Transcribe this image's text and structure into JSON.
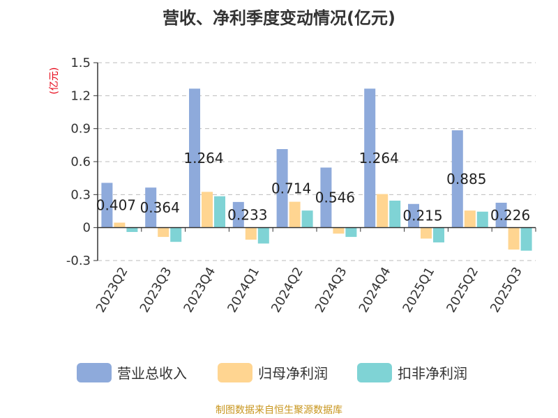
{
  "chart_data": {
    "type": "bar",
    "title": "营收、净利季度变动情况(亿元)",
    "unit_label": "(亿元)",
    "categories": [
      "2023Q2",
      "2023Q3",
      "2023Q4",
      "2024Q1",
      "2024Q2",
      "2024Q3",
      "2024Q4",
      "2025Q1",
      "2025Q2",
      "2025Q3"
    ],
    "series": [
      {
        "name": "营业总收入",
        "color": "#8eaadb",
        "values": [
          0.407,
          0.364,
          1.264,
          0.233,
          0.714,
          0.546,
          1.264,
          0.215,
          0.885,
          0.226
        ]
      },
      {
        "name": "归母净利润",
        "color": "#ffd591",
        "values": [
          0.045,
          -0.085,
          0.325,
          -0.11,
          0.235,
          -0.055,
          0.305,
          -0.1,
          0.155,
          -0.2
        ]
      },
      {
        "name": "扣非净利润",
        "color": "#7fd3d5",
        "values": [
          -0.04,
          -0.13,
          0.285,
          -0.145,
          0.155,
          -0.085,
          0.245,
          -0.135,
          0.145,
          -0.21
        ]
      }
    ],
    "data_labels": [
      "0.407",
      "0.364",
      "1.264",
      "0.233",
      "0.714",
      "0.546",
      "1.264",
      "0.215",
      "0.885",
      "0.226"
    ],
    "yticks": [
      "-0.3",
      "0",
      "0.3",
      "0.6",
      "0.9",
      "1.2",
      "1.5"
    ],
    "ylim": [
      -0.3,
      1.5
    ],
    "grid": true,
    "legend_position": "bottom"
  },
  "footer": {
    "source": "制图数据来自恒生聚源数据库"
  }
}
